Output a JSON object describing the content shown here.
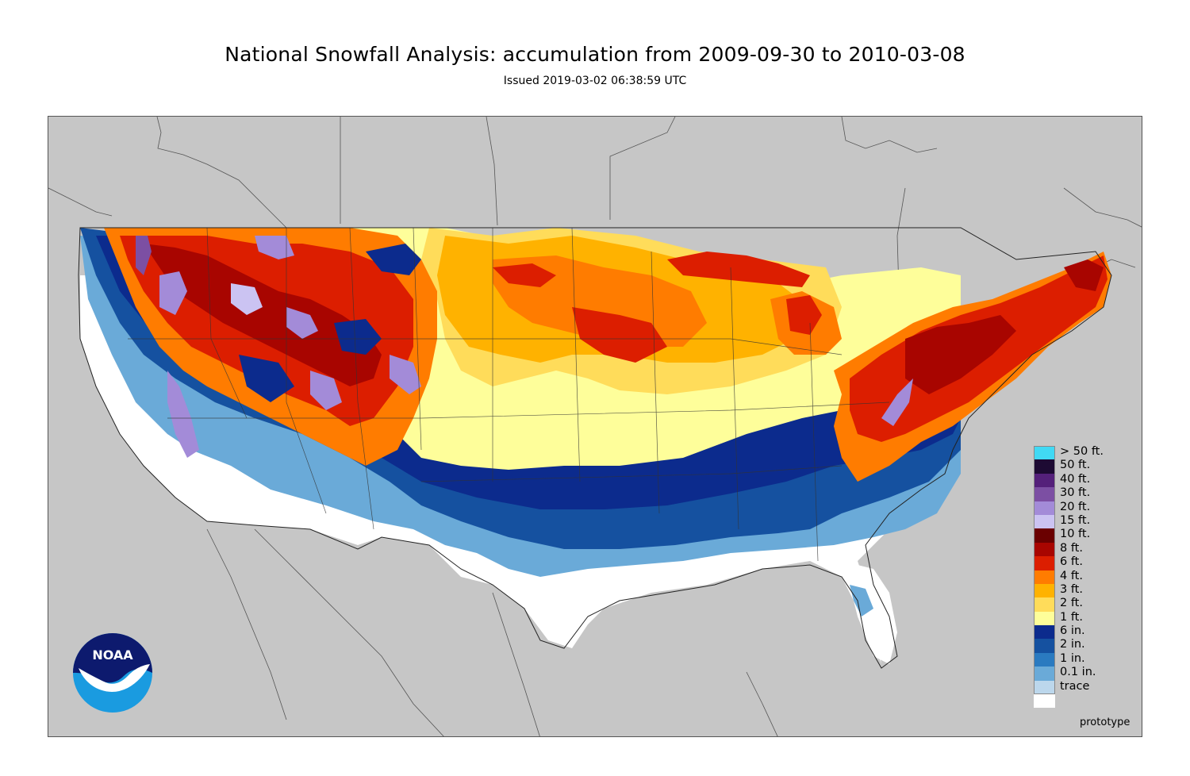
{
  "title": "National Snowfall Analysis: accumulation from 2009-09-30 to 2010-03-08",
  "subtitle": "Issued 2019-03-02 06:38:59 UTC",
  "footer_note": "prototype",
  "logo_text": "NOAA",
  "colors": {
    "background_land_outside": "#c6c6c6",
    "border_lines": "#333333"
  },
  "legend": [
    {
      "label": "> 50 ft.",
      "color": "#41d9f4"
    },
    {
      "label": "50 ft.",
      "color": "#1d0a33"
    },
    {
      "label": "40 ft.",
      "color": "#54207a"
    },
    {
      "label": "30 ft.",
      "color": "#7c4fa3"
    },
    {
      "label": "20 ft.",
      "color": "#a38bd8"
    },
    {
      "label": "15 ft.",
      "color": "#cbc3f2"
    },
    {
      "label": "10 ft.",
      "color": "#6a0000"
    },
    {
      "label": "8 ft.",
      "color": "#a80500"
    },
    {
      "label": "6 ft.",
      "color": "#dc1e00"
    },
    {
      "label": "4 ft.",
      "color": "#ff7c00"
    },
    {
      "label": "3 ft.",
      "color": "#ffb200"
    },
    {
      "label": "2 ft.",
      "color": "#ffdc5a"
    },
    {
      "label": "1 ft.",
      "color": "#fefe9a"
    },
    {
      "label": "6 in.",
      "color": "#0c2b8d"
    },
    {
      "label": "2 in.",
      "color": "#1551a0"
    },
    {
      "label": "1 in.",
      "color": "#2a7ac0"
    },
    {
      "label": "0.1 in.",
      "color": "#6aaad8"
    },
    {
      "label": "trace",
      "color": "#bcd7ec"
    },
    {
      "label": "",
      "color": "#ffffff"
    }
  ]
}
